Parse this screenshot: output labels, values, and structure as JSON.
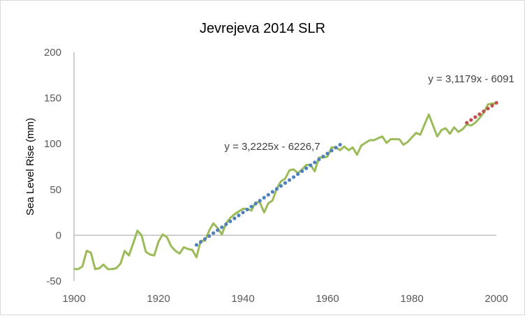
{
  "chart_data": {
    "type": "line",
    "title": "Jevrejeva 2014 SLR",
    "xlabel": "",
    "ylabel": "Sea Level Rise (mm)",
    "xlim": [
      1900,
      2000
    ],
    "ylim": [
      -50,
      200
    ],
    "xticks": [
      1900,
      1920,
      1940,
      1960,
      1980,
      2000
    ],
    "yticks": [
      -50,
      0,
      50,
      100,
      150,
      200
    ],
    "grid": false,
    "legend": "none",
    "colors": {
      "series": "#9bbb59",
      "trend1": "#4f81bd",
      "trend2": "#c0504d",
      "axis": "#bfbfbf",
      "text": "#595959"
    },
    "series": [
      {
        "name": "Sea Level Rise",
        "x_start": 1900,
        "x_step": 1,
        "values": [
          -37,
          -37,
          -34,
          -17,
          -19,
          -37,
          -36,
          -32,
          -37,
          -37,
          -36,
          -31,
          -17,
          -22,
          -9,
          5,
          0,
          -18,
          -21,
          -22,
          -7,
          1,
          -2,
          -12,
          -17,
          -20,
          -13,
          -15,
          -16,
          -24,
          -6,
          -6,
          5,
          13,
          8,
          1,
          13,
          19,
          23,
          26,
          29,
          29,
          27,
          36,
          36,
          25,
          35,
          38,
          51,
          59,
          62,
          71,
          72,
          68,
          72,
          77,
          77,
          70,
          85,
          85,
          86,
          96,
          96,
          93,
          97,
          93,
          96,
          88,
          98,
          101,
          104,
          104,
          106,
          108,
          101,
          105,
          105,
          105,
          99,
          102,
          107,
          112,
          110,
          121,
          132,
          120,
          108,
          115,
          117,
          111,
          118,
          113,
          116,
          121,
          120,
          123,
          128,
          134,
          143,
          144,
          144
        ]
      }
    ],
    "trendlines": [
      {
        "name": "trend-1929-1963",
        "slope": 3.2225,
        "intercept": -6226.7,
        "x_range": [
          1929,
          1963
        ],
        "label": "y = 3,2225x - 6226,7"
      },
      {
        "name": "trend-1993-2000",
        "slope": 3.1179,
        "intercept": -6091,
        "x_range": [
          1993,
          2000
        ],
        "label": "y = 3,1179x - 6091"
      }
    ]
  }
}
